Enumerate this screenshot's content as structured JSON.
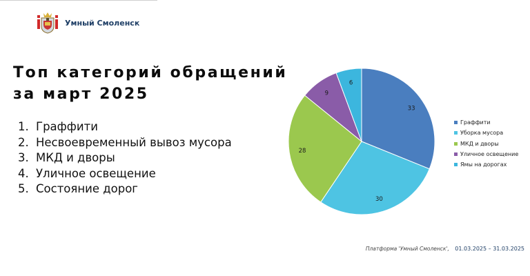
{
  "header": {
    "brand_name": "Умный Смоленск",
    "logo_icon": "smolensk-coat-of-arms-icon"
  },
  "title": {
    "line1": "Топ категорий обращений",
    "line2": "за март 2025"
  },
  "top_list": [
    {
      "num": "1.",
      "label": "Граффити"
    },
    {
      "num": "2.",
      "label": "Несвоевременный вывоз мусора"
    },
    {
      "num": "3.",
      "label": "МКД и дворы"
    },
    {
      "num": "4.",
      "label": "Уличное освещение"
    },
    {
      "num": "5.",
      "label": "Состояние дорог"
    }
  ],
  "chart_data": {
    "type": "pie",
    "categories": [
      "Граффити",
      "Уборка мусора",
      "МКД и дворы",
      "Уличное освещение",
      "Ямы на дорогах"
    ],
    "values": [
      33,
      30,
      28,
      9,
      6
    ],
    "colors": [
      "#4a7ebf",
      "#4ec4e3",
      "#9bc84e",
      "#8a5ca8",
      "#3cb6de"
    ],
    "legend_position": "right"
  },
  "footer": {
    "platform": "Платформа 'Умный Смоленск',",
    "period": "01.03.2025 – 31.03.2025"
  }
}
